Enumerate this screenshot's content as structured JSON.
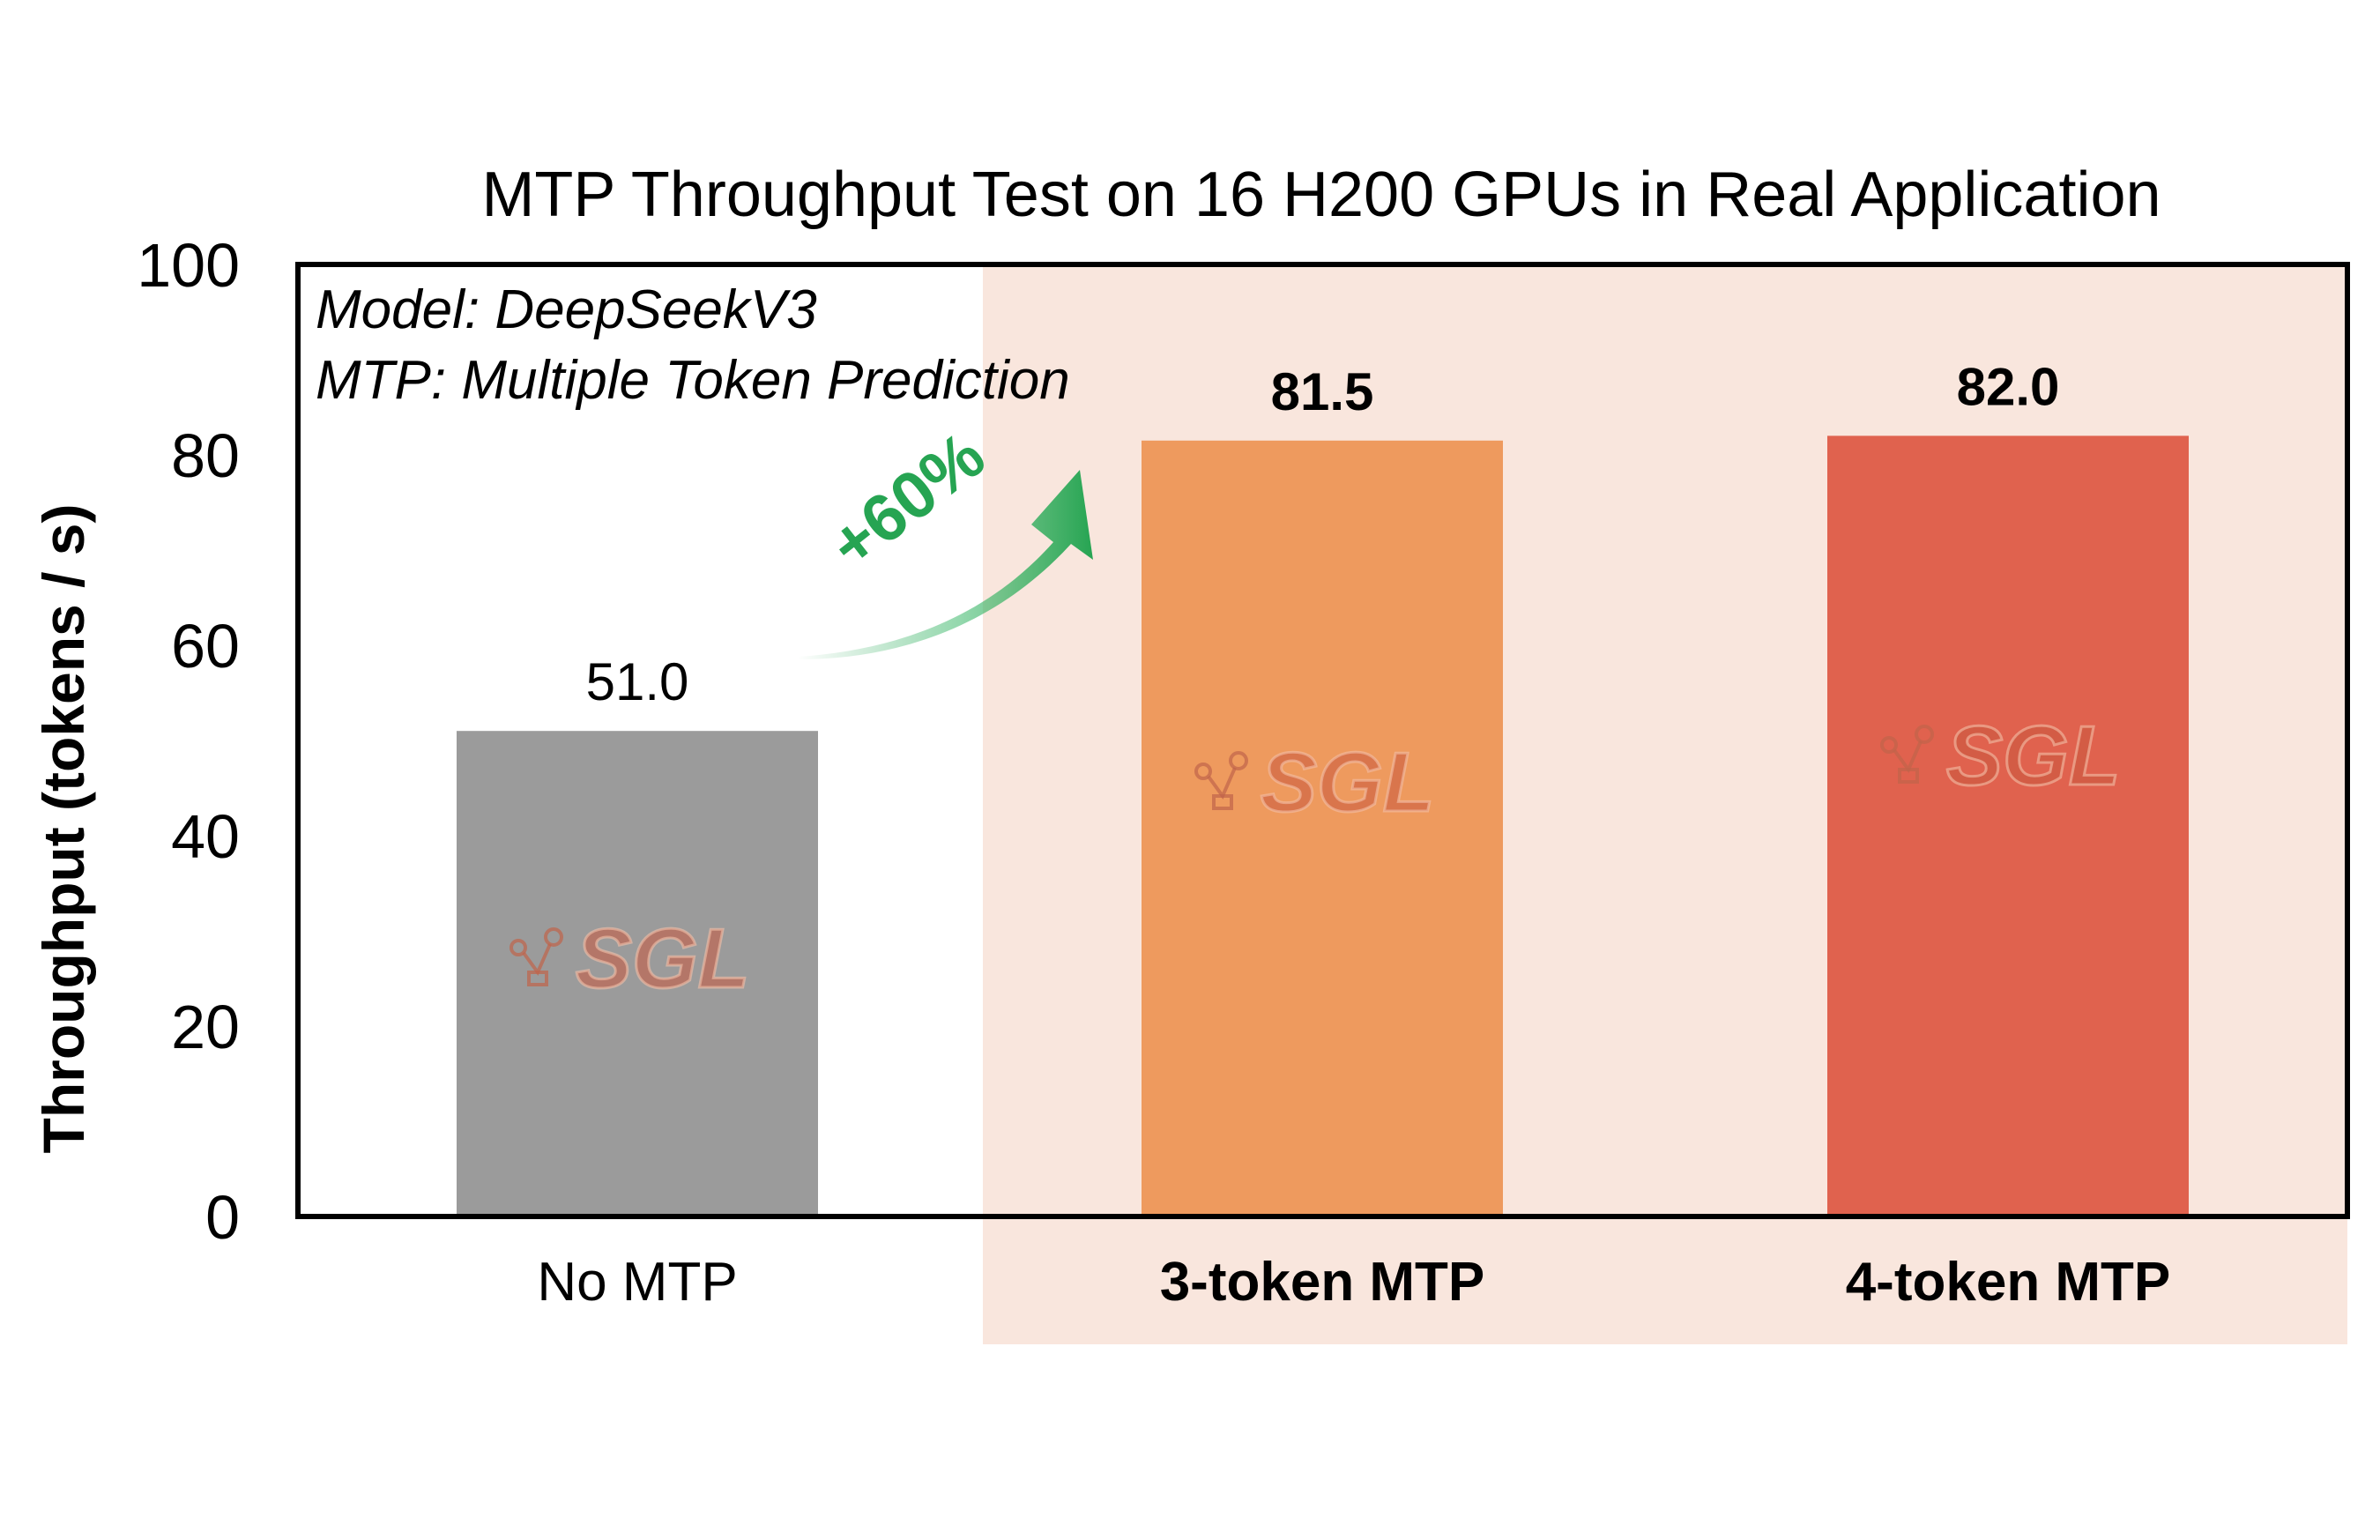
{
  "chart_data": {
    "type": "bar",
    "title": "MTP Throughput Test on 16 H200 GPUs in Real Application",
    "ylabel": "Throughput (tokens / s)",
    "xlabel": "",
    "ylim": [
      0,
      100
    ],
    "yticks": [
      "0",
      "20",
      "40",
      "60",
      "80",
      "100"
    ],
    "categories": [
      "No MTP",
      "3-token MTP",
      "4-token MTP"
    ],
    "values": [
      51.0,
      81.5,
      82.0
    ],
    "value_labels": [
      "51.0",
      "81.5",
      "82.0"
    ],
    "bar_colors": [
      "#9b9b9b",
      "#ee9a5e",
      "#e0624e"
    ],
    "highlight_background": "#f9e6dd",
    "highlighted_categories": [
      "3-token MTP",
      "4-token MTP"
    ],
    "annotations": {
      "model_note": "Model: DeepSeekV3",
      "mtp_note": "MTP: Multiple Token Prediction",
      "gain_label": "+60%",
      "gain_color": "#26a452"
    },
    "watermark": "SGL",
    "grid": false,
    "legend": "none"
  }
}
